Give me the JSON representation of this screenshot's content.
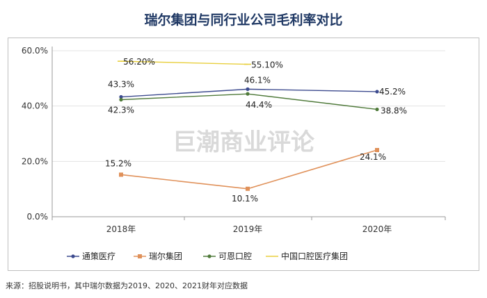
{
  "title": "瑞尔集团与同行业公司毛利率对比",
  "watermark": "巨潮商业评论",
  "source": "来源：招股说明书，其中瑞尔数据为2019、2020、2021财年对应数据",
  "chart_data": {
    "type": "line",
    "categories": [
      "2018年",
      "2019年",
      "2020年"
    ],
    "ylim": [
      0,
      60
    ],
    "yticks": [
      "0.0%",
      "20.0%",
      "40.0%",
      "60.0%"
    ],
    "legend_position": "bottom",
    "series": [
      {
        "name": "通策医疗",
        "color": "#3c4a8e",
        "values": [
          43.3,
          46.1,
          45.2
        ],
        "labels": [
          "43.3%",
          "46.1%",
          "45.2%"
        ]
      },
      {
        "name": "瑞尔集团",
        "color": "#e0915a",
        "values": [
          15.2,
          10.1,
          24.1
        ],
        "labels": [
          "15.2%",
          "10.1%",
          "24.1%"
        ]
      },
      {
        "name": "可恩口腔",
        "color": "#4f7a3a",
        "values": [
          42.3,
          44.4,
          38.8
        ],
        "labels": [
          "42.3%",
          "44.4%",
          "38.8%"
        ]
      },
      {
        "name": "中国口腔医疗集团",
        "color": "#e8cf3c",
        "values": [
          56.2,
          55.1,
          null
        ],
        "labels": [
          "56.20%",
          "55.10%",
          null
        ]
      }
    ]
  }
}
